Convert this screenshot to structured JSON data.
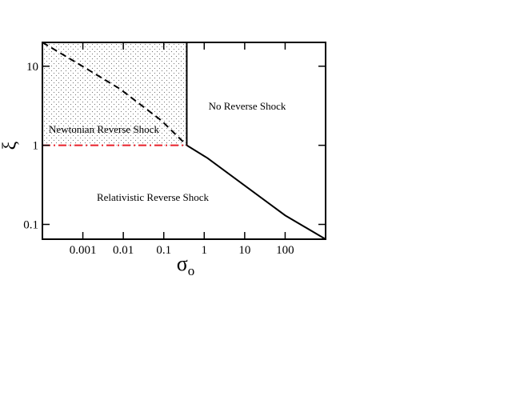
{
  "chart_data": {
    "type": "line",
    "xlog": true,
    "ylog": true,
    "xlim": [
      0.0001,
      1000
    ],
    "ylim": [
      0.065,
      20
    ],
    "xticks": [
      0.001,
      0.01,
      0.1,
      1,
      10,
      100
    ],
    "yticks": [
      0.1,
      1,
      10
    ],
    "xlabel": {
      "symbol": "σ",
      "subscript": "o"
    },
    "ylabel": "ξ",
    "annotations": [
      "No Reverse Shock",
      "Newtonian Reverse Shock",
      "Relativistic Reverse Shock"
    ],
    "shade": {
      "x": [
        0.0001,
        0.37
      ],
      "y": [
        1,
        20
      ],
      "pattern": "dots",
      "color": "#777777"
    },
    "series": [
      {
        "color": "#000000",
        "style": "dashed",
        "x": [
          0.0001,
          0.00083,
          0.0081,
          0.087,
          0.37
        ],
        "values": [
          20,
          10.5,
          5.2,
          2.06,
          1
        ]
      },
      {
        "color": "#000000",
        "style": "solid",
        "x": [
          0.37,
          0.37
        ],
        "values": [
          1,
          20
        ]
      },
      {
        "color": "#000000",
        "style": "solid",
        "x": [
          0.37,
          1.2,
          10,
          100,
          1000
        ],
        "values": [
          1,
          0.69,
          0.31,
          0.13,
          0.065
        ]
      },
      {
        "color": "#e8202a",
        "style": "dashdot",
        "x": [
          0.0001,
          0.37
        ],
        "values": [
          1,
          1
        ]
      }
    ]
  }
}
